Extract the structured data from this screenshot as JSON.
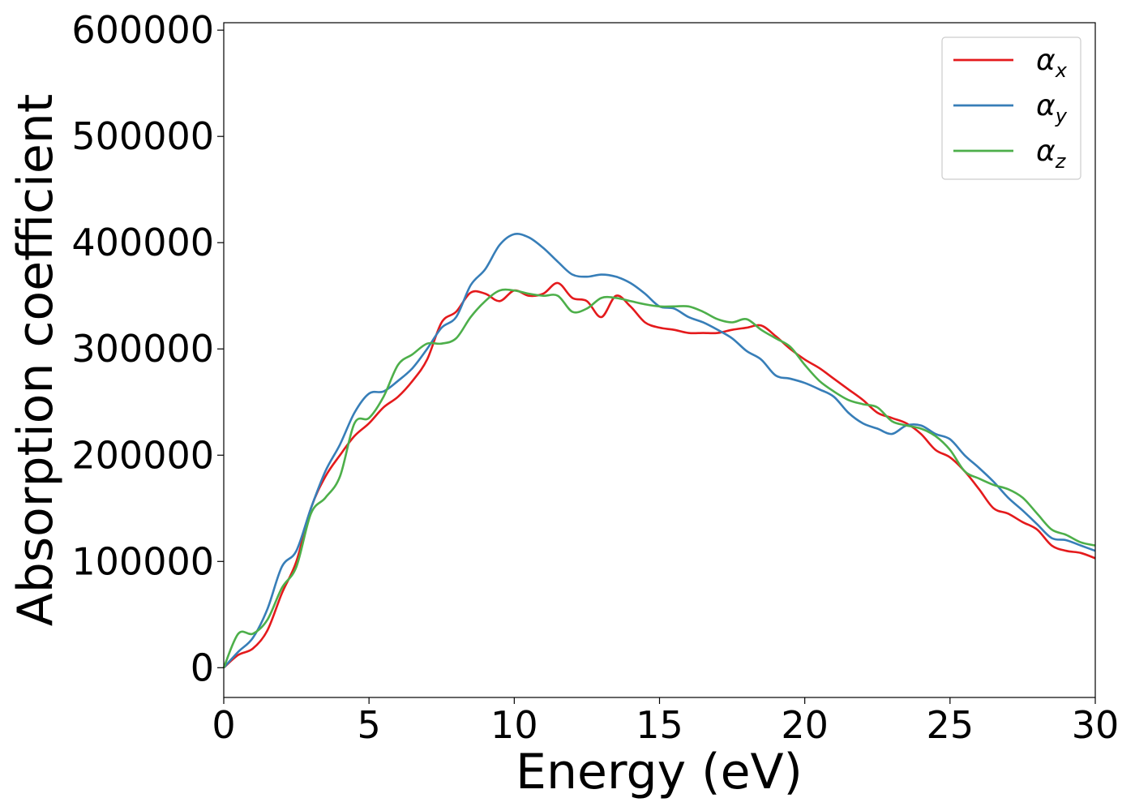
{
  "chart_data": {
    "type": "line",
    "xlabel": "Energy (eV)",
    "ylabel": "Absorption coefficient",
    "xlim": [
      0,
      30
    ],
    "ylim": [
      -28000,
      607000
    ],
    "x_ticks": [
      "0",
      "5",
      "10",
      "15",
      "20",
      "25",
      "30"
    ],
    "y_ticks": [
      "0",
      "100000",
      "200000",
      "300000",
      "400000",
      "500000",
      "600000"
    ],
    "grid": false,
    "legend_position": "top-right",
    "x": [
      0,
      0.5,
      1,
      1.5,
      2,
      2.5,
      3,
      3.5,
      4,
      4.5,
      5,
      5.5,
      6,
      6.5,
      7,
      7.5,
      8,
      8.5,
      9,
      9.5,
      10,
      10.5,
      11,
      11.5,
      12,
      12.5,
      13,
      13.5,
      14,
      14.5,
      15,
      15.5,
      16,
      16.5,
      17,
      17.5,
      18,
      18.5,
      19,
      19.5,
      20,
      20.5,
      21,
      21.5,
      22,
      22.5,
      23,
      23.5,
      24,
      24.5,
      25,
      25.5,
      26,
      26.5,
      27,
      27.5,
      28,
      28.5,
      29,
      29.5,
      30
    ],
    "series": [
      {
        "name": "α",
        "subscript": "x",
        "color": "#e41a1c",
        "values": [
          0,
          12000,
          18000,
          35000,
          70000,
          100000,
          150000,
          180000,
          200000,
          218000,
          230000,
          245000,
          255000,
          270000,
          290000,
          325000,
          335000,
          353000,
          352000,
          345000,
          355000,
          350000,
          352000,
          362000,
          348000,
          345000,
          330000,
          350000,
          340000,
          325000,
          320000,
          318000,
          315000,
          315000,
          315000,
          318000,
          320000,
          322000,
          312000,
          300000,
          290000,
          282000,
          272000,
          262000,
          252000,
          240000,
          235000,
          230000,
          220000,
          205000,
          198000,
          185000,
          168000,
          150000,
          145000,
          137000,
          130000,
          115000,
          110000,
          108000,
          103000
        ]
      },
      {
        "name": "α",
        "subscript": "y",
        "color": "#377eb8",
        "values": [
          0,
          15000,
          28000,
          55000,
          95000,
          110000,
          150000,
          185000,
          210000,
          240000,
          258000,
          260000,
          270000,
          282000,
          300000,
          320000,
          330000,
          360000,
          375000,
          398000,
          408000,
          405000,
          395000,
          382000,
          370000,
          368000,
          370000,
          368000,
          362000,
          352000,
          340000,
          338000,
          330000,
          325000,
          318000,
          310000,
          298000,
          290000,
          275000,
          272000,
          268000,
          262000,
          255000,
          240000,
          230000,
          225000,
          220000,
          228000,
          228000,
          220000,
          215000,
          200000,
          188000,
          175000,
          160000,
          148000,
          135000,
          122000,
          120000,
          115000,
          110000
        ]
      },
      {
        "name": "α",
        "subscript": "z",
        "color": "#4daf4a",
        "values": [
          0,
          32000,
          32000,
          45000,
          75000,
          95000,
          145000,
          160000,
          180000,
          230000,
          235000,
          255000,
          285000,
          295000,
          305000,
          305000,
          310000,
          330000,
          345000,
          355000,
          355000,
          352000,
          350000,
          350000,
          335000,
          338000,
          348000,
          348000,
          345000,
          342000,
          340000,
          340000,
          340000,
          335000,
          328000,
          325000,
          328000,
          318000,
          310000,
          302000,
          285000,
          270000,
          260000,
          252000,
          248000,
          245000,
          232000,
          228000,
          225000,
          218000,
          205000,
          185000,
          178000,
          172000,
          168000,
          160000,
          145000,
          130000,
          125000,
          118000,
          115000
        ]
      }
    ]
  }
}
